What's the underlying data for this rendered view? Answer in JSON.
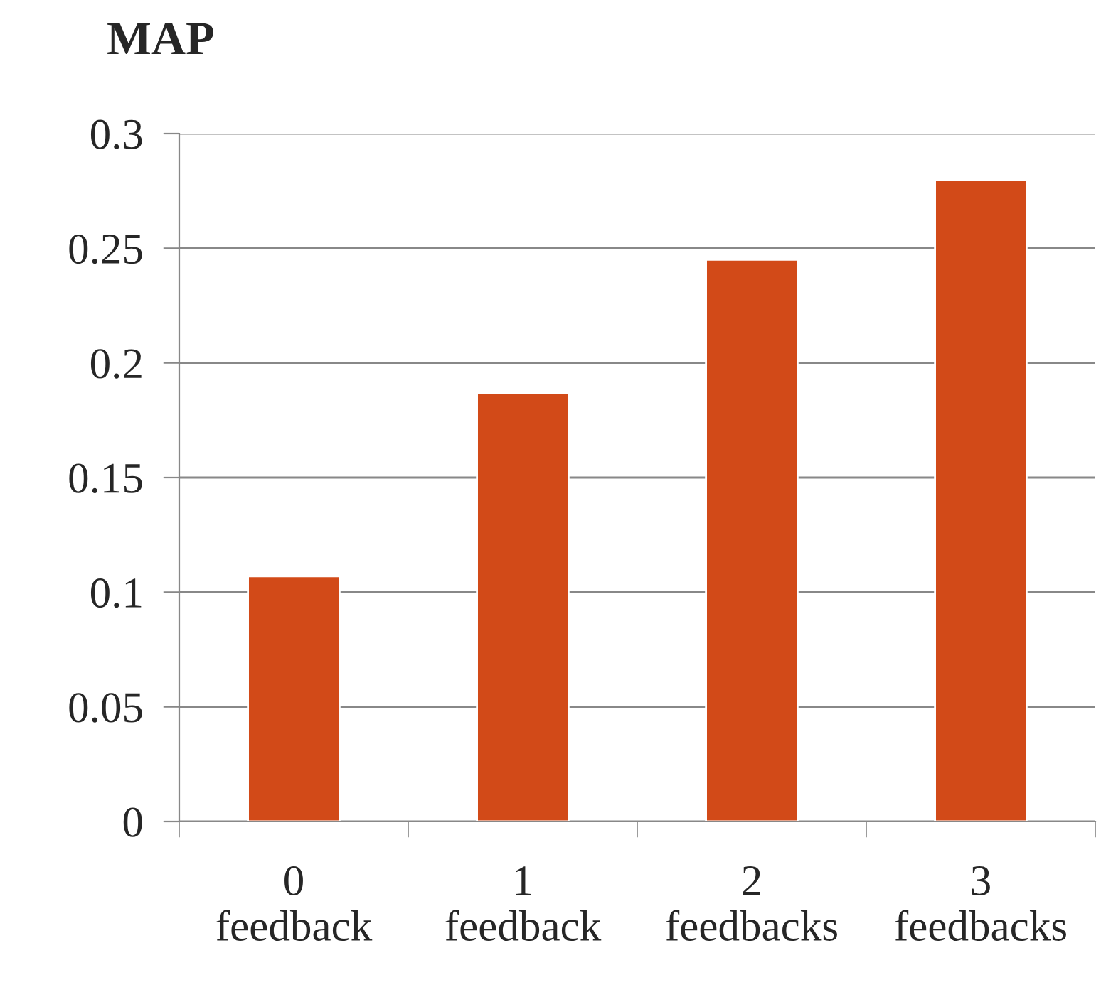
{
  "chart_data": {
    "type": "bar",
    "ylabel": "MAP",
    "categories": [
      "0\nfeedback",
      "1\nfeedback",
      "2\nfeedbacks",
      "3\nfeedbacks"
    ],
    "values": [
      0.107,
      0.187,
      0.245,
      0.28
    ],
    "color": "#d24a18",
    "ylim": [
      0,
      0.3
    ],
    "yticks": [
      {
        "value": 0,
        "label": "0"
      },
      {
        "value": 0.05,
        "label": "0.05"
      },
      {
        "value": 0.1,
        "label": "0.1"
      },
      {
        "value": 0.15,
        "label": "0.15"
      },
      {
        "value": 0.2,
        "label": "0.2"
      },
      {
        "value": 0.25,
        "label": "0.25"
      },
      {
        "value": 0.3,
        "label": "0.3"
      }
    ],
    "grid": "y",
    "legend": false
  }
}
